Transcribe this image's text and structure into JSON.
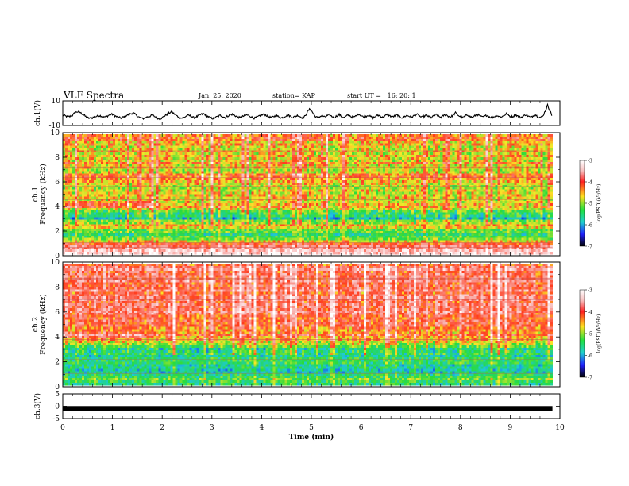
{
  "header": {
    "title": "VLF Spectra",
    "date": "Jan. 25, 2020",
    "station": "station= KAP",
    "start": "start UT =   16: 20: 1"
  },
  "chart_data": [
    {
      "type": "line",
      "ylabel": "ch.1(V)",
      "ylim": [
        -10,
        10
      ],
      "yticks": [
        "10",
        "-10"
      ],
      "xlim": [
        0,
        10
      ],
      "series": [
        {
          "color": "#000000",
          "values_description": "noisy waveform roughly between -6 and 7 V",
          "values": [
            -1.5,
            -2.2,
            -3.0,
            -2.5,
            -1.8,
            0.5,
            1.2,
            0.8,
            -0.5,
            -2.0,
            -3.5,
            -4.2,
            -3.8,
            -3.0,
            -2.6,
            -1.9,
            -2.3,
            -3.1,
            -2.8,
            -1.6,
            -0.8,
            -1.4,
            -2.7,
            -3.4,
            -3.9,
            -3.2,
            -2.1,
            -1.2,
            -0.4,
            0.2,
            -1.0,
            -2.6,
            -3.8,
            -4.5,
            -3.6,
            -2.9,
            -2.4,
            -1.6,
            -2.8,
            -3.9,
            -4.6,
            -3.7,
            -2.2,
            -1.0,
            0.4,
            0.9,
            -0.6,
            -2.1,
            -3.3,
            -4.0,
            -3.5,
            -2.3,
            -1.7,
            -2.5,
            -3.6,
            -3.1,
            -2.0,
            -1.1,
            -0.3,
            -1.5,
            -2.9,
            -3.8,
            -4.3,
            -3.4,
            -2.6,
            -1.8,
            -2.7,
            -3.5,
            -2.4,
            -1.3,
            -0.9,
            -1.9,
            -3.0,
            -3.7,
            -2.9,
            -2.0,
            -1.4,
            -2.2,
            -3.3,
            -4.1,
            -3.2,
            -2.5,
            -1.6,
            -0.7,
            -1.8,
            -2.9,
            -3.6,
            -2.7,
            -1.9,
            -2.8,
            -3.9,
            -3.1,
            -2.2,
            -1.5,
            -2.6,
            -3.4,
            -2.5,
            -1.7,
            -2.9,
            -3.8,
            -2.3,
            1.5,
            3.5,
            0.8,
            -2.4,
            -3.6,
            -2.8,
            -1.9,
            -3.2,
            -2.1,
            -1.4,
            -2.6,
            -3.5,
            -2.2,
            -1.1,
            -2.7,
            -3.6,
            -2.4,
            -1.3,
            -2.9,
            -3.4,
            -2.0,
            -0.6,
            -1.8,
            -3.1,
            -2.5,
            -1.6,
            -2.8,
            -3.7,
            -2.6,
            -1.5,
            -2.4,
            -3.3,
            -2.1,
            -1.0,
            -2.3,
            -3.0,
            -2.2,
            -1.4,
            -2.9,
            -3.6,
            -2.7,
            -1.8,
            -2.5,
            -3.2,
            -1.9,
            -0.8,
            -2.1,
            -3.4,
            -2.6,
            -1.5,
            -2.8,
            -3.5,
            -2.3,
            -1.2,
            -2.6,
            -3.3,
            -2.0,
            -1.1,
            -2.4,
            -3.1,
            -1.7,
            0.4,
            -1.5,
            -2.9,
            -3.6,
            -2.4,
            -1.3,
            -2.7,
            -3.4,
            -2.1,
            -0.9,
            -2.2,
            -3.2,
            -2.5,
            -1.6,
            -2.9,
            -3.7,
            -2.8,
            -1.7,
            -2.6,
            -3.1,
            -1.8,
            -0.5,
            -1.9,
            -3.0,
            -2.3,
            -1.4,
            -2.7,
            -3.5,
            -2.4,
            -1.1,
            -2.5,
            -3.3,
            -2.2,
            -1.3,
            -2.8,
            -3.6,
            -2.6,
            1.8,
            6.5,
            2.0,
            -2.8
          ]
        }
      ]
    },
    {
      "type": "heatmap",
      "ylabel": "ch.1\nFrequency (kHz)",
      "xlim": [
        0,
        10
      ],
      "ylim": [
        0,
        10
      ],
      "yticks": [
        "0",
        "2",
        "4",
        "6",
        "8",
        "10"
      ],
      "colorbar": {
        "label": "log(PSD)(V²/Hz)",
        "ticks": [
          "-3",
          "-4",
          "-5",
          "-6",
          "-7"
        ],
        "range": [
          -7,
          -3
        ]
      },
      "band_profile": [
        {
          "f": 0.0,
          "v": -3.4
        },
        {
          "f": 0.5,
          "v": -3.8
        },
        {
          "f": 1.0,
          "v": -4.4
        },
        {
          "f": 1.5,
          "v": -5.6
        },
        {
          "f": 2.0,
          "v": -5.2
        },
        {
          "f": 2.5,
          "v": -4.6
        },
        {
          "f": 3.0,
          "v": -5.8
        },
        {
          "f": 3.5,
          "v": -5.3
        },
        {
          "f": 4.0,
          "v": -4.4
        },
        {
          "f": 4.5,
          "v": -4.8
        },
        {
          "f": 5.0,
          "v": -4.5
        },
        {
          "f": 5.5,
          "v": -5.0
        },
        {
          "f": 6.0,
          "v": -4.6
        },
        {
          "f": 6.5,
          "v": -4.4
        },
        {
          "f": 7.0,
          "v": -4.8
        },
        {
          "f": 7.5,
          "v": -4.5
        },
        {
          "f": 8.0,
          "v": -4.7
        },
        {
          "f": 8.5,
          "v": -4.6
        },
        {
          "f": 9.0,
          "v": -4.7
        },
        {
          "f": 9.5,
          "v": -4.4
        },
        {
          "f": 10.0,
          "v": -4.3
        }
      ]
    },
    {
      "type": "heatmap",
      "ylabel": "ch.2\nFrequency (kHz)",
      "xlim": [
        0,
        10
      ],
      "ylim": [
        0,
        10
      ],
      "yticks": [
        "0",
        "2",
        "4",
        "6",
        "8",
        "10"
      ],
      "colorbar": {
        "label": "log(PSD)(V²/Hz)",
        "ticks": [
          "-3",
          "-4",
          "-5",
          "-6",
          "-7"
        ],
        "range": [
          -7,
          -3
        ]
      },
      "band_profile": [
        {
          "f": 0.0,
          "v": -5.5
        },
        {
          "f": 0.5,
          "v": -5.2
        },
        {
          "f": 1.0,
          "v": -5.6
        },
        {
          "f": 1.5,
          "v": -5.8
        },
        {
          "f": 2.0,
          "v": -5.4
        },
        {
          "f": 2.5,
          "v": -5.7
        },
        {
          "f": 3.0,
          "v": -5.5
        },
        {
          "f": 3.5,
          "v": -4.8
        },
        {
          "f": 4.0,
          "v": -4.2
        },
        {
          "f": 4.5,
          "v": -4.4
        },
        {
          "f": 5.0,
          "v": -4.0
        },
        {
          "f": 5.5,
          "v": -4.3
        },
        {
          "f": 6.0,
          "v": -3.9
        },
        {
          "f": 6.5,
          "v": -4.1
        },
        {
          "f": 7.0,
          "v": -3.8
        },
        {
          "f": 7.5,
          "v": -4.0
        },
        {
          "f": 8.0,
          "v": -3.9
        },
        {
          "f": 8.5,
          "v": -4.0
        },
        {
          "f": 9.0,
          "v": -3.8
        },
        {
          "f": 9.5,
          "v": -3.9
        },
        {
          "f": 10.0,
          "v": -4.1
        }
      ]
    },
    {
      "type": "line",
      "ylabel": "ch.3(V)",
      "ylim": [
        -5,
        5
      ],
      "yticks": [
        "5",
        "0",
        "-5"
      ],
      "xlim": [
        0,
        10
      ],
      "series": [
        {
          "color": "#000000",
          "values": [
            -0.9,
            -0.9
          ]
        }
      ]
    }
  ],
  "xaxis": {
    "label": "Time (min)",
    "ticks": [
      "0",
      "1",
      "2",
      "3",
      "4",
      "5",
      "6",
      "7",
      "8",
      "9",
      "10"
    ]
  }
}
